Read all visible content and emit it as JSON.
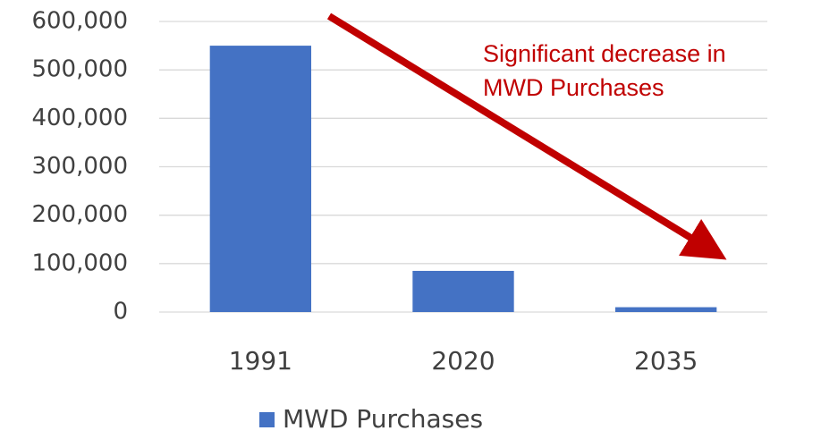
{
  "chart_data": {
    "type": "bar",
    "categories": [
      "1991",
      "2020",
      "2035"
    ],
    "series": [
      {
        "name": "MWD Purchases",
        "color": "#4472c4",
        "values": [
          550000,
          85000,
          10000
        ]
      }
    ],
    "ylim": [
      0,
      600000
    ],
    "yticks": [
      0,
      {
        "value": 100000,
        "label": "100,000"
      },
      {
        "value": 200000,
        "label": "200,000"
      },
      {
        "value": 300000,
        "label": "300,000"
      },
      {
        "value": 400000,
        "label": "400,000"
      },
      {
        "value": 500000,
        "label": "500,000"
      },
      {
        "value": 600000,
        "label": "600,000"
      }
    ],
    "grid": true,
    "legend": "bottom",
    "annotation": [
      "Significant decrease in",
      "MWD Purchases"
    ]
  }
}
